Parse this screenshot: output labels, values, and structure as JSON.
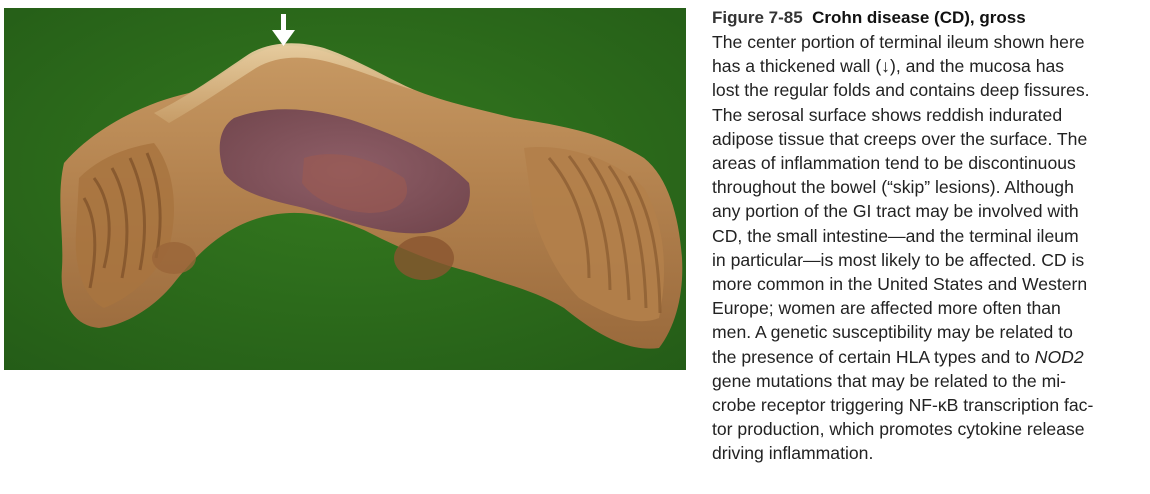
{
  "figure": {
    "number": "Figure 7-85",
    "title": "Crohn disease (CD), gross",
    "caption_lines": [
      "The center portion of terminal ileum shown here",
      "has a thickened wall (↓), and the mucosa has",
      "lost the regular folds and contains deep fissures.",
      "The serosal surface shows reddish indurated",
      "adipose tissue that creeps over the surface. The",
      "areas of inflammation tend to be discontinuous",
      "throughout the bowel (“skip” lesions). Although",
      "any portion of the GI tract may be involved with",
      "CD, the small intestine—and the terminal ileum",
      "in particular—is most likely to be affected. CD is",
      "more common in the United States and Western",
      "Europe; women are affected more often than",
      "men. A genetic susceptibility may be related to",
      "the presence of certain HLA types and to NOD2",
      "gene mutations that may be related to the mi-",
      "crobe receptor triggering NF-κB transcription fac-",
      "tor production, which promotes cytokine release",
      "driving inflammation."
    ]
  },
  "colors": {
    "background_green": "#2b6a1c",
    "specimen_tan": "#b98a57",
    "specimen_purple": "#7a4a5c",
    "arrow": "#ffffff",
    "text": "#222222"
  }
}
